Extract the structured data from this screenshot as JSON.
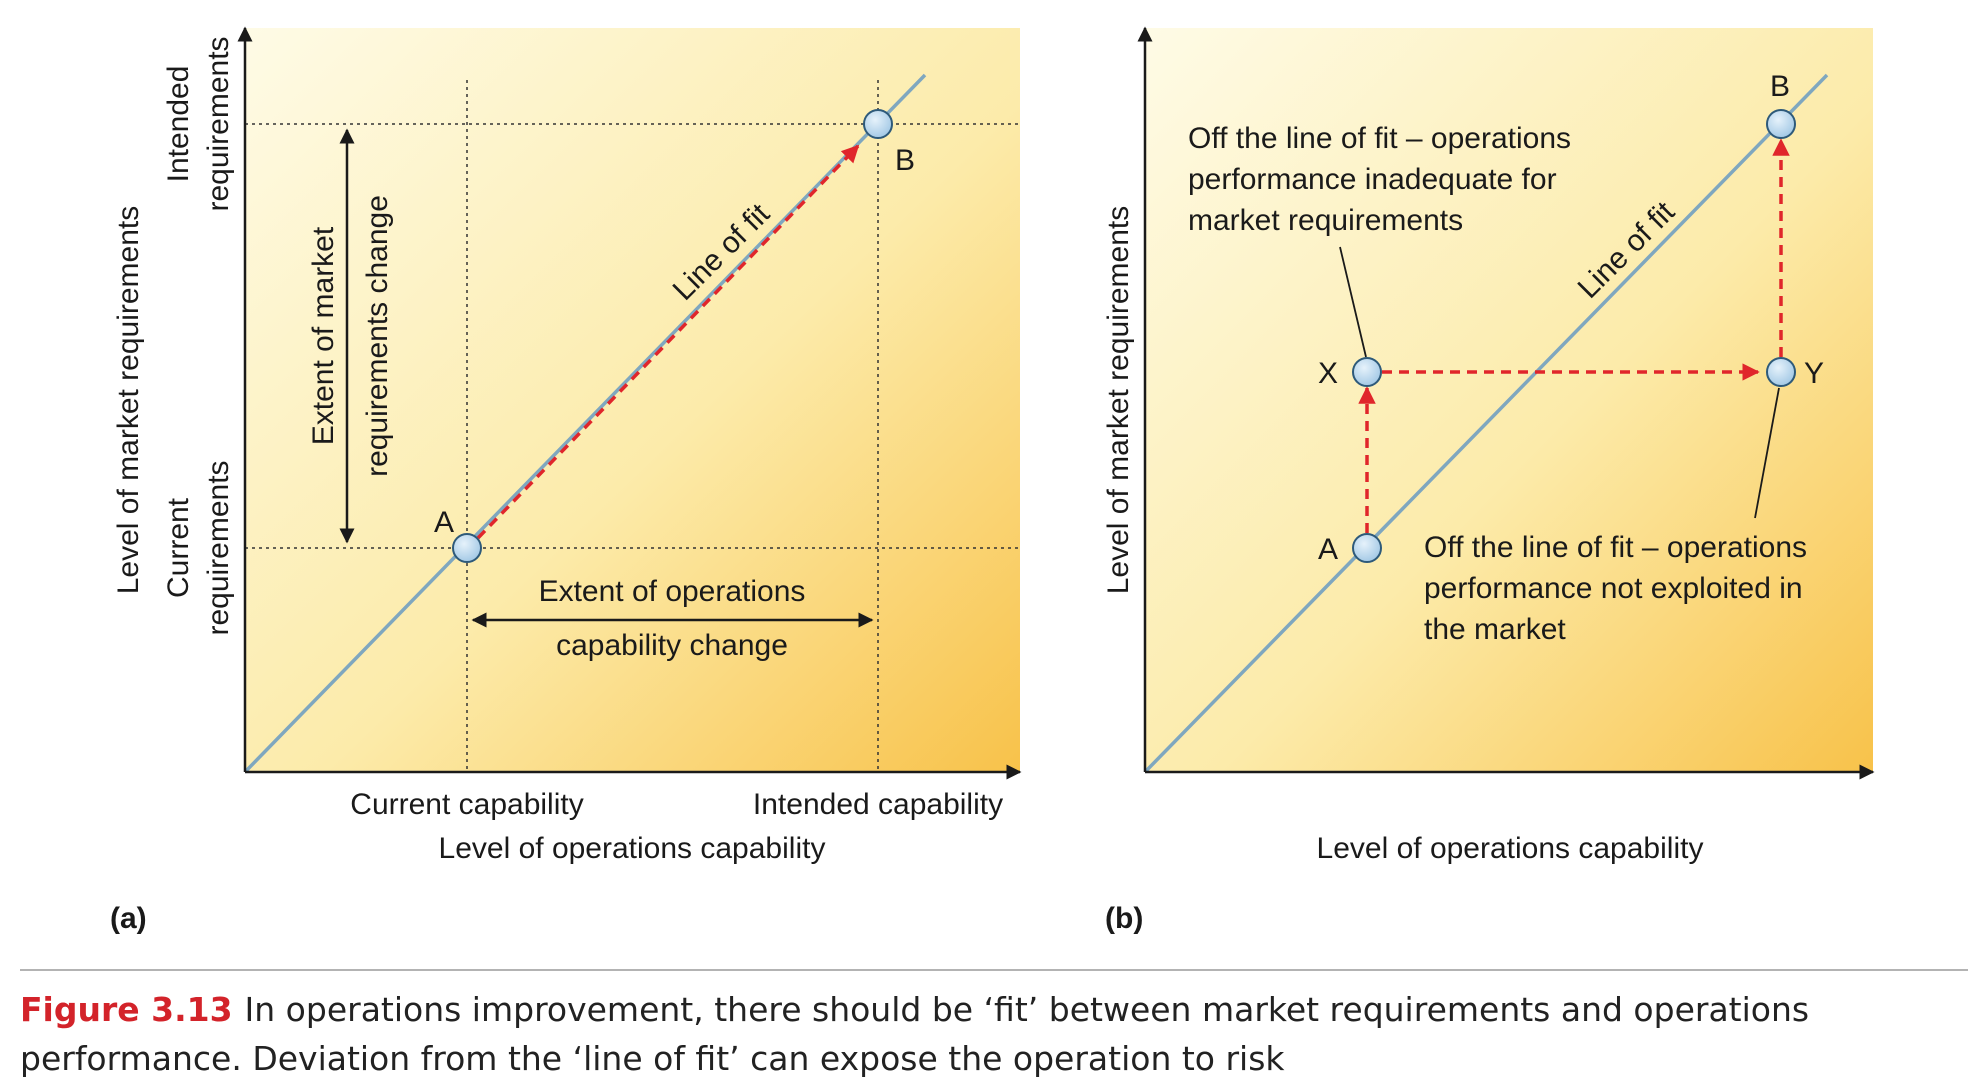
{
  "panel_a": {
    "panel_label": "(a)",
    "y_axis_label": "Level of market requirements",
    "x_axis_label": "Level of operations capability",
    "y_tick_intended": [
      "Intended",
      "requirements"
    ],
    "y_tick_current": [
      "Current",
      "requirements"
    ],
    "x_tick_current": "Current capability",
    "x_tick_intended": "Intended capability",
    "line_label": "Line of fit",
    "point_a": "A",
    "point_b": "B",
    "vertical_arrow_label": [
      "Extent of market",
      "requirements change"
    ],
    "horizontal_arrow_label": [
      "Extent of operations",
      "capability change"
    ]
  },
  "panel_b": {
    "panel_label": "(b)",
    "y_axis_label": "Level of market requirements",
    "x_axis_label": "Level of operations capability",
    "line_label": "Line of fit",
    "point_a": "A",
    "point_b": "B",
    "point_x": "X",
    "point_y": "Y",
    "note_x": [
      "Off the line of fit – operations",
      "performance inadequate for",
      "market requirements"
    ],
    "note_y": [
      "Off the line of fit – operations",
      "performance not exploited in",
      "the market"
    ]
  },
  "caption": {
    "figure_number": "Figure 3.13",
    "text": "In operations improvement, there should be ‘fit’ between market requirements and operations performance. Deviation from the ‘line of fit’ can expose the operation to risk"
  },
  "colors": {
    "fit_line": "#7fa7bf",
    "arrow": "#e0262b",
    "point_fill": "#b9d7ee",
    "bg_light": "#fdf3c4",
    "bg_dark": "#f8c24a",
    "rule": "#9a9a9a"
  }
}
